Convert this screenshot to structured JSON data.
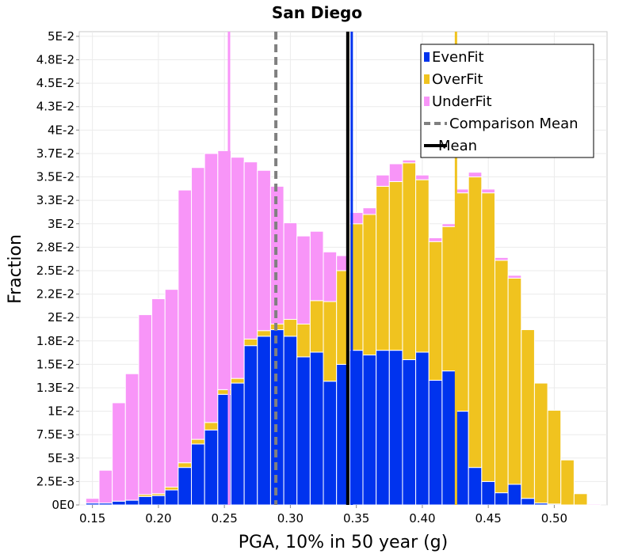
{
  "chart_data": {
    "type": "bar",
    "stacked": true,
    "title": "San Diego",
    "xlabel": "PGA, 10% in 50 year (g)",
    "ylabel": "Fraction",
    "xlim": [
      0.14,
      0.54
    ],
    "ylim": [
      0,
      0.0505
    ],
    "bin_width": 0.01,
    "x_ticks": [
      "0.15",
      "0.20",
      "0.25",
      "0.30",
      "0.35",
      "0.40",
      "0.45",
      "0.50"
    ],
    "y_ticks": [
      "0E0",
      "2.5E-3",
      "5E-3",
      "7.5E-3",
      "1E-2",
      "1.3E-2",
      "1.5E-2",
      "1.8E-2",
      "2E-2",
      "2.2E-2",
      "2.5E-2",
      "2.8E-2",
      "3E-2",
      "3.3E-2",
      "3.5E-2",
      "3.7E-2",
      "4E-2",
      "4.3E-2",
      "4.5E-2",
      "4.8E-2",
      "5E-2"
    ],
    "x": [
      0.15,
      0.16,
      0.17,
      0.18,
      0.19,
      0.2,
      0.21,
      0.22,
      0.23,
      0.24,
      0.25,
      0.26,
      0.27,
      0.28,
      0.29,
      0.3,
      0.31,
      0.32,
      0.33,
      0.34,
      0.35,
      0.36,
      0.37,
      0.38,
      0.39,
      0.4,
      0.41,
      0.42,
      0.43,
      0.44,
      0.45,
      0.46,
      0.47,
      0.48,
      0.49,
      0.5,
      0.51,
      0.52,
      0.53
    ],
    "series": [
      {
        "name": "EvenFit",
        "color": "#0033ee",
        "values": [
          0.0002,
          0.0002,
          0.0004,
          0.0005,
          0.0009,
          0.001,
          0.0016,
          0.004,
          0.0065,
          0.008,
          0.0118,
          0.013,
          0.017,
          0.018,
          0.0187,
          0.018,
          0.0158,
          0.0163,
          0.0132,
          0.015,
          0.0165,
          0.016,
          0.0165,
          0.0165,
          0.0155,
          0.0163,
          0.0133,
          0.0143,
          0.01,
          0.004,
          0.0025,
          0.0013,
          0.0022,
          0.0007,
          0.0002,
          0.0001,
          0,
          0,
          0
        ]
      },
      {
        "name": "OverFit",
        "color": "#f0c31f",
        "values": [
          0,
          0,
          0,
          0,
          0.0002,
          0.0002,
          0.0003,
          0.0005,
          0.0005,
          0.0008,
          0.0005,
          0.0005,
          0.0007,
          0.0006,
          0.0006,
          0.0018,
          0.0035,
          0.0055,
          0.0085,
          0.01,
          0.0135,
          0.015,
          0.0175,
          0.018,
          0.021,
          0.0184,
          0.0148,
          0.0154,
          0.0233,
          0.031,
          0.0308,
          0.0248,
          0.022,
          0.018,
          0.0128,
          0.01,
          0.0048,
          0.0012,
          0
        ]
      },
      {
        "name": "UnderFit",
        "color": "#f895f8",
        "values": [
          0.0005,
          0.0035,
          0.0105,
          0.0135,
          0.0192,
          0.0208,
          0.0211,
          0.0291,
          0.029,
          0.0287,
          0.0255,
          0.0236,
          0.0189,
          0.0171,
          0.0147,
          0.0103,
          0.0094,
          0.0074,
          0.0053,
          0.0016,
          0.0012,
          0.0007,
          0.0012,
          0.0019,
          0.0003,
          0.0005,
          0.0004,
          0.0003,
          0.0004,
          0.0005,
          0.0004,
          0.0003,
          0.0003,
          0,
          0,
          0,
          0,
          0,
          0.0001
        ]
      }
    ],
    "vlines": [
      {
        "name": "Comparison Mean",
        "x": 0.289,
        "color": "#808080",
        "dashed": true
      },
      {
        "name": "Mean",
        "x": 0.3435,
        "color": "#000000",
        "dashed": false
      },
      {
        "name": "EvenFit",
        "x": 0.3465,
        "color": "#0033ee",
        "dashed": false,
        "legend": false
      },
      {
        "name": "OverFit",
        "x": 0.4255,
        "color": "#f0c31f",
        "dashed": false,
        "legend": false
      },
      {
        "name": "UnderFit",
        "x": 0.2535,
        "color": "#f895f8",
        "dashed": false,
        "legend": false
      }
    ],
    "legend": {
      "position": "top-right",
      "entries": [
        {
          "label": "EvenFit",
          "color": "#0033ee",
          "kind": "box"
        },
        {
          "label": "OverFit",
          "color": "#f0c31f",
          "kind": "box"
        },
        {
          "label": "UnderFit",
          "color": "#f895f8",
          "kind": "box"
        },
        {
          "label": "Comparison Mean",
          "color": "#808080",
          "kind": "dashed"
        },
        {
          "label": "Mean",
          "color": "#000000",
          "kind": "solid"
        }
      ]
    }
  }
}
